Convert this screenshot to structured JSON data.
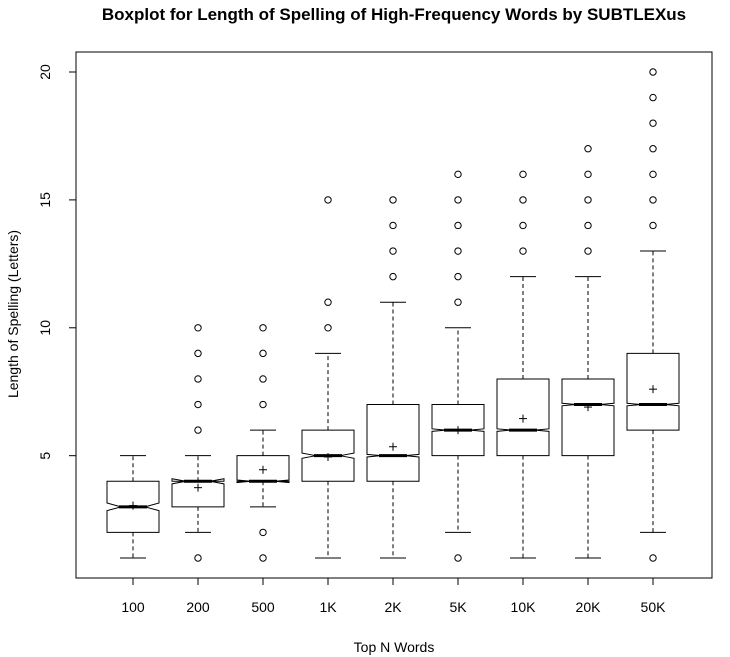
{
  "chart_data": {
    "type": "boxplot",
    "title": "Boxplot for Length of Spelling of High-Frequency Words by SUBTLEXus",
    "xlabel": "Top N Words",
    "ylabel": "Length of Spelling (Letters)",
    "yticks": [
      "5",
      "10",
      "15",
      "20"
    ],
    "ylim": [
      0,
      20.3
    ],
    "notched": true,
    "mean_marker": "+",
    "grid": false,
    "categories": [
      "100",
      "200",
      "500",
      "1K",
      "2K",
      "5K",
      "10K",
      "20K",
      "50K"
    ],
    "boxes": [
      {
        "category": "100",
        "whisker_low": 1,
        "q1": 2,
        "median": 3,
        "q3": 4,
        "whisker_high": 5,
        "notch_low": 2.85,
        "notch_high": 3.15,
        "mean": 3.05,
        "outliers": []
      },
      {
        "category": "200",
        "whisker_low": 2,
        "q1": 3,
        "median": 4,
        "q3": 4,
        "whisker_high": 5,
        "notch_low": 3.9,
        "notch_high": 4.1,
        "mean": 3.75,
        "outliers": [
          1,
          6,
          7,
          8,
          9,
          10
        ]
      },
      {
        "category": "500",
        "whisker_low": 3,
        "q1": 4,
        "median": 4,
        "q3": 5,
        "whisker_high": 6,
        "notch_low": 3.95,
        "notch_high": 4.05,
        "mean": 4.45,
        "outliers": [
          1,
          2,
          7,
          8,
          9,
          10
        ]
      },
      {
        "category": "1K",
        "whisker_low": 1,
        "q1": 4,
        "median": 5,
        "q3": 6,
        "whisker_high": 9,
        "notch_low": 4.9,
        "notch_high": 5.1,
        "mean": 4.95,
        "outliers": [
          10,
          11,
          15
        ]
      },
      {
        "category": "2K",
        "whisker_low": 1,
        "q1": 4,
        "median": 5,
        "q3": 7,
        "whisker_high": 11,
        "notch_low": 4.95,
        "notch_high": 5.05,
        "mean": 5.35,
        "outliers": [
          12,
          13,
          14,
          15
        ]
      },
      {
        "category": "5K",
        "whisker_low": 2,
        "q1": 5,
        "median": 6,
        "q3": 7,
        "whisker_high": 10,
        "notch_low": 5.95,
        "notch_high": 6.05,
        "mean": 6.0,
        "outliers": [
          1,
          11,
          12,
          13,
          14,
          15,
          16
        ]
      },
      {
        "category": "10K",
        "whisker_low": 1,
        "q1": 5,
        "median": 6,
        "q3": 8,
        "whisker_high": 12,
        "notch_low": 5.95,
        "notch_high": 6.05,
        "mean": 6.45,
        "outliers": [
          13,
          14,
          15,
          16
        ]
      },
      {
        "category": "20K",
        "whisker_low": 1,
        "q1": 5,
        "median": 7,
        "q3": 8,
        "whisker_high": 12,
        "notch_low": 6.95,
        "notch_high": 7.05,
        "mean": 6.9,
        "outliers": [
          13,
          14,
          15,
          16,
          17
        ]
      },
      {
        "category": "50K",
        "whisker_low": 2,
        "q1": 6,
        "median": 7,
        "q3": 9,
        "whisker_high": 13,
        "notch_low": 6.95,
        "notch_high": 7.05,
        "mean": 7.6,
        "outliers": [
          1,
          14,
          15,
          16,
          17,
          18,
          19,
          20
        ]
      }
    ]
  }
}
